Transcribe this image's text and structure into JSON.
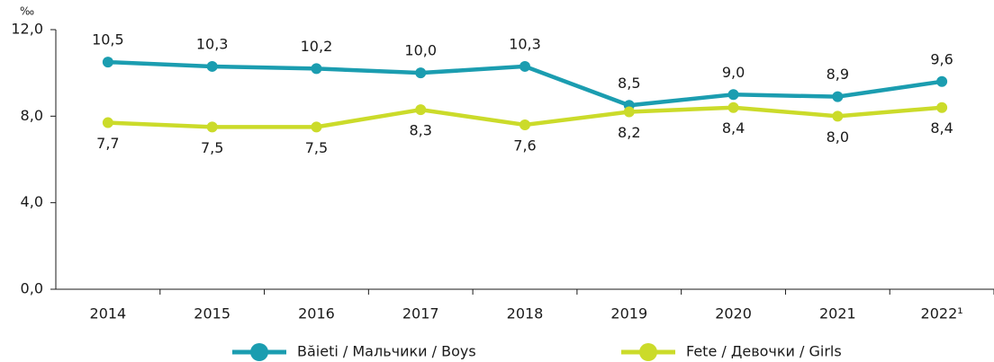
{
  "chart_data": {
    "type": "line",
    "y_label": "‰",
    "categories": [
      "2014",
      "2015",
      "2016",
      "2017",
      "2018",
      "2019",
      "2020",
      "2021",
      "2022¹"
    ],
    "series": [
      {
        "name": "Băieti / Мальчики / Boys",
        "color": "#1b9db0",
        "values": [
          10.5,
          10.3,
          10.2,
          10.0,
          10.3,
          8.5,
          9.0,
          8.9,
          9.6
        ],
        "value_labels": [
          "10,5",
          "10,3",
          "10,2",
          "10,0",
          "10,3",
          "8,5",
          "9,0",
          "8,9",
          "9,6"
        ],
        "label_position": "above"
      },
      {
        "name": "Fete / Девочки / Girls",
        "color": "#cbdb2a",
        "values": [
          7.7,
          7.5,
          7.5,
          8.3,
          7.6,
          8.2,
          8.4,
          8.0,
          8.4
        ],
        "value_labels": [
          "7,7",
          "7,5",
          "7,5",
          "8,3",
          "7,6",
          "8,2",
          "8,4",
          "8,0",
          "8,4"
        ],
        "label_position": "below"
      }
    ],
    "ylim": [
      0,
      12
    ],
    "yticks": [
      {
        "value": 0,
        "label": "0,0"
      },
      {
        "value": 4,
        "label": "4,0"
      },
      {
        "value": 8,
        "label": "8,0"
      },
      {
        "value": 12,
        "label": "12,0"
      }
    ],
    "grid": false
  }
}
